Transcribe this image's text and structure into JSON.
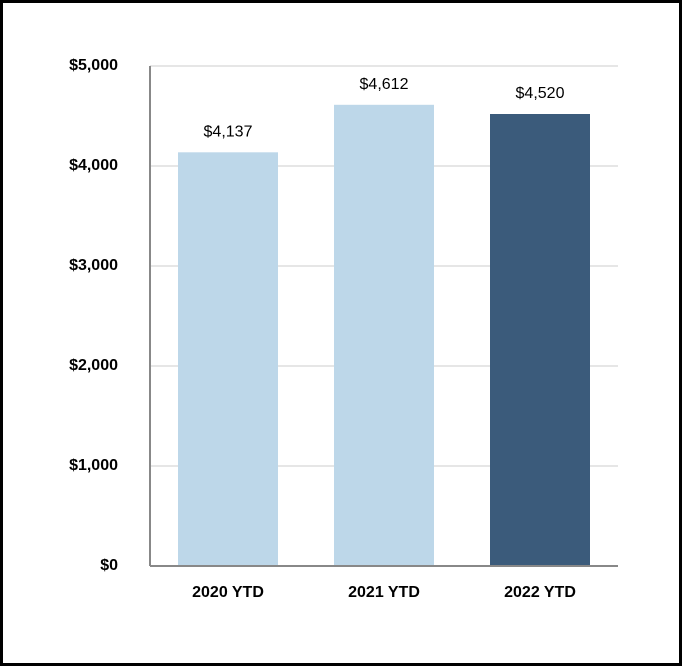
{
  "chart_data": {
    "type": "bar",
    "categories": [
      "2020 YTD",
      "2021 YTD",
      "2022 YTD"
    ],
    "values": [
      4137,
      4612,
      4520
    ],
    "value_labels": [
      "$4,137",
      "$4,612",
      "$4,520"
    ],
    "colors": [
      "#bdd7e9",
      "#bdd7e9",
      "#3b5b7b"
    ],
    "ylim": [
      0,
      5000
    ],
    "yticks": [
      {
        "value": 0,
        "label": "$0"
      },
      {
        "value": 1000,
        "label": "$1,000"
      },
      {
        "value": 2000,
        "label": "$2,000"
      },
      {
        "value": 3000,
        "label": "$3,000"
      },
      {
        "value": 4000,
        "label": "$4,000"
      },
      {
        "value": 5000,
        "label": "$5,000"
      }
    ],
    "grid": true
  }
}
